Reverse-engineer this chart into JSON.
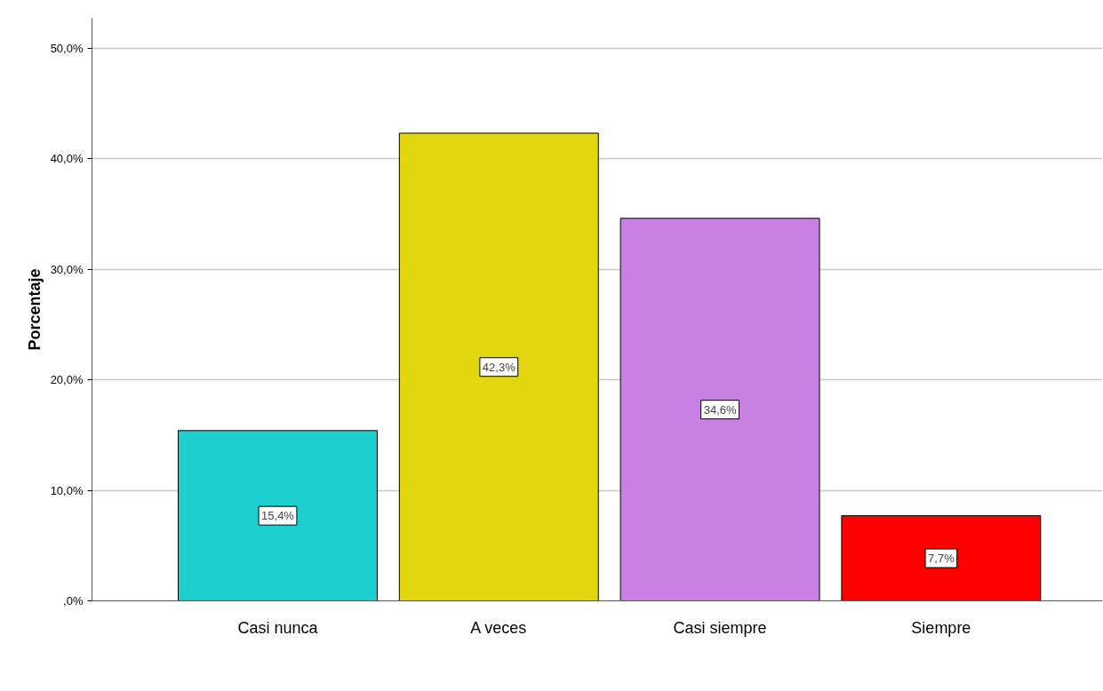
{
  "chart_data": {
    "type": "bar",
    "ylabel": "Porcentaje",
    "categories": [
      "Casi nunca",
      "A veces",
      "Casi siempre",
      "Siempre"
    ],
    "values": [
      15.4,
      42.3,
      34.6,
      7.7
    ],
    "colors": [
      "#1ecfcf",
      "#e2d70f",
      "#c980e3",
      "#ff0000"
    ],
    "value_labels": [
      "15,4%",
      "42,3%",
      "34,6%",
      "7,7%"
    ],
    "ylim": [
      0,
      52.7
    ],
    "yticks": [
      {
        "value": 0,
        "label": ",0%"
      },
      {
        "value": 10,
        "label": "10,0%"
      },
      {
        "value": 20,
        "label": "20,0%"
      },
      {
        "value": 30,
        "label": "30,0%"
      },
      {
        "value": 40,
        "label": "40,0%"
      },
      {
        "value": 50,
        "label": "50,0%"
      }
    ],
    "grid": "y"
  }
}
